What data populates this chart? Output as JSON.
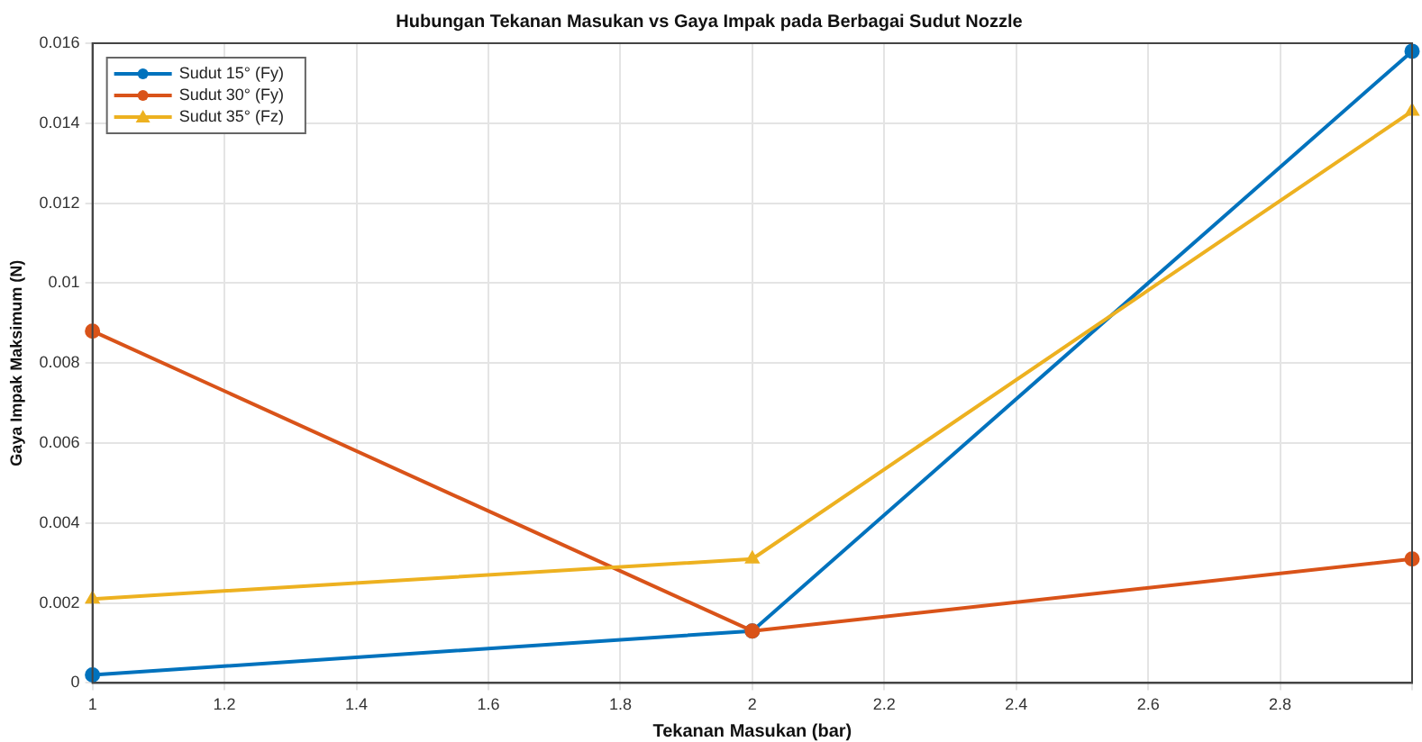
{
  "chart_data": {
    "type": "line",
    "title": "Hubungan Tekanan Masukan vs Gaya Impak pada Berbagai Sudut Nozzle",
    "xlabel": "Tekanan Masukan (bar)",
    "ylabel": "Gaya Impak Maksimum (N)",
    "x": [
      1,
      2,
      3
    ],
    "series": [
      {
        "name": "Sudut 15° (Fy)",
        "color": "#0072bd",
        "values": [
          0.0002,
          0.0013,
          0.0158
        ],
        "marker": "circle"
      },
      {
        "name": "Sudut 30° (Fy)",
        "color": "#d95319",
        "values": [
          0.0088,
          0.0013,
          0.0031
        ],
        "marker": "circle"
      },
      {
        "name": "Sudut 35° (Fz)",
        "color": "#edb120",
        "values": [
          0.0021,
          0.0031,
          0.0143
        ],
        "marker": "triangle"
      }
    ],
    "xlim": [
      1,
      3
    ],
    "xticks": [
      1,
      1.2,
      1.4,
      1.6,
      1.8,
      2,
      2.2,
      2.4,
      2.6,
      2.8,
      {
        "value": 3,
        "label": null
      }
    ],
    "ylim": [
      0,
      0.016
    ],
    "yticks": [
      0,
      0.002,
      0.004,
      0.006,
      0.008,
      0.01,
      0.012,
      0.014,
      0.016
    ],
    "grid": true,
    "legend": "top left",
    "line_style": "solid"
  }
}
